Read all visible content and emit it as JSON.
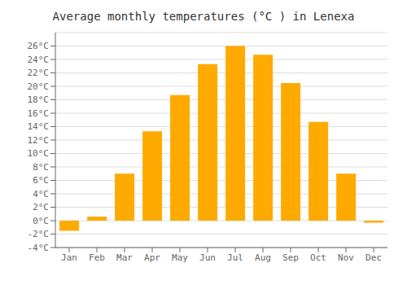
{
  "chart_data": {
    "type": "bar",
    "title": "Average monthly temperatures (°C ) in Lenexa",
    "categories": [
      "Jan",
      "Feb",
      "Mar",
      "Apr",
      "May",
      "Jun",
      "Jul",
      "Aug",
      "Sep",
      "Oct",
      "Nov",
      "Dec"
    ],
    "values": [
      -1.5,
      0.6,
      7.0,
      13.3,
      18.7,
      23.3,
      26.0,
      24.7,
      20.5,
      14.7,
      7.0,
      -0.3
    ],
    "color": "#FFAA00",
    "ylim": [
      -4,
      28
    ],
    "yticks": [
      {
        "value": -4,
        "label": "-4°C"
      },
      {
        "value": -2,
        "label": "-2°C"
      },
      {
        "value": 0,
        "label": "0°C"
      },
      {
        "value": 2,
        "label": "2°C"
      },
      {
        "value": 4,
        "label": "4°C"
      },
      {
        "value": 6,
        "label": "6°C"
      },
      {
        "value": 8,
        "label": "8°C"
      },
      {
        "value": 10,
        "label": "10°C"
      },
      {
        "value": 12,
        "label": "12°C"
      },
      {
        "value": 14,
        "label": "14°C"
      },
      {
        "value": 16,
        "label": "16°C"
      },
      {
        "value": 18,
        "label": "18°C"
      },
      {
        "value": 20,
        "label": "20°C"
      },
      {
        "value": 22,
        "label": "22°C"
      },
      {
        "value": 24,
        "label": "24°C"
      },
      {
        "value": 26,
        "label": "26°C"
      }
    ],
    "grid": true
  }
}
